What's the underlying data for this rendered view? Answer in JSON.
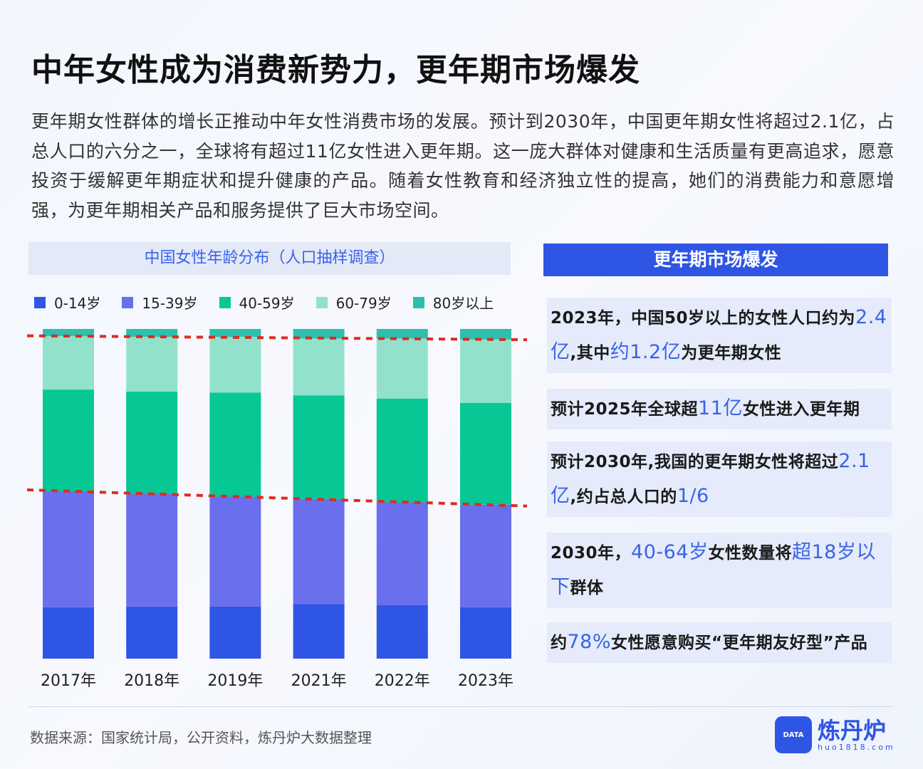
{
  "title": "中年女性成为消费新势力，更年期市场爆发",
  "intro": "更年期女性群体的增长正推动中年女性消费市场的发展。预计到2030年，中国更年期女性将超过2.1亿，占总人口的六分之一，全球将有超过11亿女性进入更年期。这一庞大群体对健康和生活质量有更高追求，愿意投资于缓解更年期症状和提升健康的产品。随着女性教育和经济独立性的提高，她们的消费能力和意愿增强，为更年期相关产品和服务提供了巨大市场空间。",
  "chart_data": {
    "type": "bar",
    "stacked": true,
    "normalized_percent": true,
    "title": "中国女性年龄分布（人口抽样调查）",
    "categories": [
      "2017年",
      "2018年",
      "2019年",
      "2021年",
      "2022年",
      "2023年"
    ],
    "series": [
      {
        "name": "0-14岁",
        "color": "#2f55e4",
        "values": [
          15.6,
          15.8,
          15.8,
          16.5,
          16.2,
          15.6
        ]
      },
      {
        "name": "15-39岁",
        "color": "#6a6fee",
        "values": [
          35.2,
          34.2,
          33.4,
          31.9,
          31.2,
          31.1
        ]
      },
      {
        "name": "40-59岁",
        "color": "#07c895",
        "values": [
          30.9,
          31.0,
          31.6,
          31.4,
          31.5,
          30.9
        ]
      },
      {
        "name": "60-79岁",
        "color": "#92e2cb",
        "values": [
          16.2,
          16.6,
          16.9,
          17.2,
          18.2,
          19.2
        ]
      },
      {
        "name": "80岁以上",
        "color": "#2ebfae",
        "values": [
          2.2,
          2.4,
          2.4,
          2.9,
          2.9,
          3.2
        ]
      }
    ],
    "legend_position": "top",
    "grid": false,
    "annotations": "red dashed trend lines along top of 60-79岁 and top of 15-39岁 segments",
    "annotation_color": "#e02a1f"
  },
  "panel": {
    "title": "更年期市场爆发",
    "highlight_color": "#3a63e8",
    "cards": [
      [
        {
          "t": "2023年，中国50岁以上的女性人口约为"
        },
        {
          "t": "2.4亿",
          "h": true
        },
        {
          "t": ",其中"
        },
        {
          "t": "约1.2亿",
          "h": true
        },
        {
          "t": "为更年期女性"
        }
      ],
      [
        {
          "t": "预计2025年全球超"
        },
        {
          "t": "11亿",
          "h": true
        },
        {
          "t": "女性进入更年期"
        }
      ],
      [
        {
          "t": "预计2030年,我国的更年期女性将超过"
        },
        {
          "t": "2.1亿",
          "h": true
        },
        {
          "t": ",约占总人口的"
        },
        {
          "t": "1/6",
          "h": true
        }
      ],
      [
        {
          "t": "2030年，"
        },
        {
          "t": "40-64岁",
          "h": true
        },
        {
          "t": "女性数量将"
        },
        {
          "t": "超18岁以下",
          "h": true
        },
        {
          "t": "群体"
        }
      ],
      [
        {
          "t": "约"
        },
        {
          "t": "78%",
          "h": true
        },
        {
          "t": "女性愿意购买“更年期友好型”产品"
        }
      ]
    ]
  },
  "footer": {
    "source": "数据来源：国家统计局，公开资料，炼丹炉大数据整理",
    "logo_name": "炼丹炉",
    "logo_url": "huo1818.com",
    "logo_badge": "DATA"
  }
}
